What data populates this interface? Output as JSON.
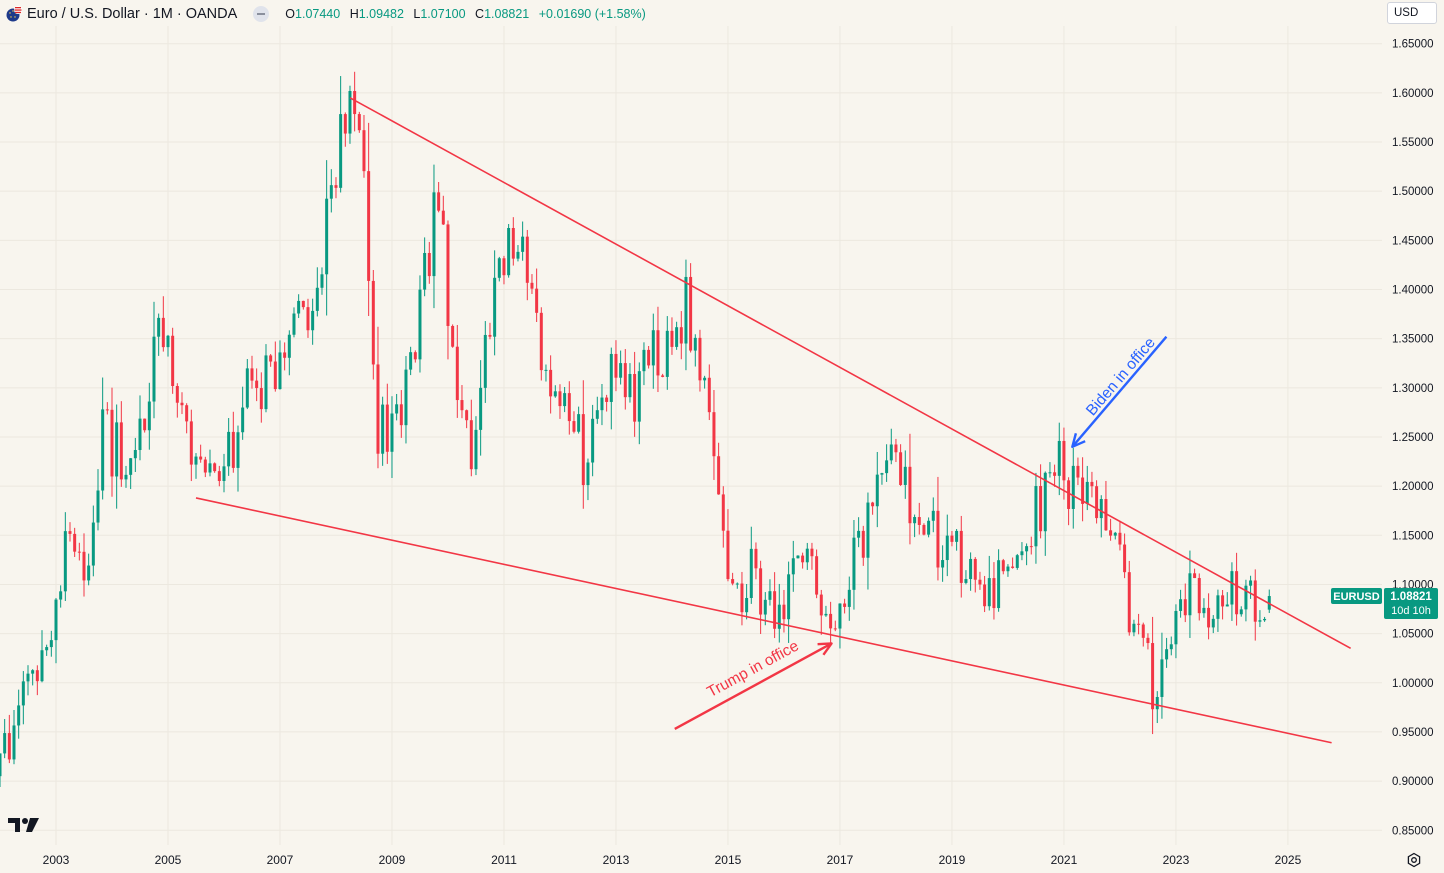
{
  "header": {
    "symbol_title": "Euro / U.S. Dollar · 1M · OANDA",
    "open_label": "O",
    "open": "1.07440",
    "high_label": "H",
    "high": "1.09482",
    "low_label": "L",
    "low": "1.07100",
    "close_label": "C",
    "close": "1.08821",
    "change": "+0.01690 (+1.58%)",
    "flag_icon": "eu-us-flag-icon",
    "menu_icon": "collapse-icon"
  },
  "currency_button": "USD",
  "colors": {
    "background": "#f8f5ee",
    "grid": "#ece8df",
    "up": "#089981",
    "down": "#f23645",
    "trendline": "#f23645",
    "trump_arrow": "#f23645",
    "biden_arrow": "#2962ff",
    "price_badge": "#089981"
  },
  "price_badge": {
    "symbol": "EURUSD",
    "price": "1.08821",
    "countdown": "10d 10h"
  },
  "chart_data": {
    "type": "candlestick",
    "title": "Euro / U.S. Dollar · 1M · OANDA",
    "interval": "1M",
    "x_range": [
      2002.0,
      2026.68
    ],
    "y_range": [
      0.835,
      1.668
    ],
    "x_ticks": [
      "2003",
      "2005",
      "2007",
      "2009",
      "2011",
      "2013",
      "2015",
      "2017",
      "2019",
      "2021",
      "2023",
      "2025"
    ],
    "y_ticks": [
      "1.65000",
      "1.60000",
      "1.55000",
      "1.50000",
      "1.45000",
      "1.40000",
      "1.35000",
      "1.30000",
      "1.25000",
      "1.20000",
      "1.15000",
      "1.10000",
      "1.05000",
      "1.00000",
      "0.95000",
      "0.90000",
      "0.85000"
    ],
    "grid": true,
    "anchors": [
      {
        "t": 2002.0,
        "p": 0.905
      },
      {
        "t": 2002.5,
        "p": 0.99
      },
      {
        "t": 2003.0,
        "p": 1.06
      },
      {
        "t": 2003.4,
        "p": 1.17
      },
      {
        "t": 2003.6,
        "p": 1.1
      },
      {
        "t": 2003.95,
        "p": 1.26
      },
      {
        "t": 2004.4,
        "p": 1.2
      },
      {
        "t": 2004.95,
        "p": 1.35
      },
      {
        "t": 2005.9,
        "p": 1.18
      },
      {
        "t": 2006.4,
        "p": 1.28
      },
      {
        "t": 2006.95,
        "p": 1.32
      },
      {
        "t": 2007.5,
        "p": 1.38
      },
      {
        "t": 2007.95,
        "p": 1.47
      },
      {
        "t": 2008.3,
        "p": 1.58
      },
      {
        "t": 2008.55,
        "p": 1.56
      },
      {
        "t": 2008.85,
        "p": 1.25
      },
      {
        "t": 2009.3,
        "p": 1.3
      },
      {
        "t": 2009.9,
        "p": 1.49
      },
      {
        "t": 2010.45,
        "p": 1.22
      },
      {
        "t": 2010.8,
        "p": 1.36
      },
      {
        "t": 2011.3,
        "p": 1.46
      },
      {
        "t": 2011.75,
        "p": 1.33
      },
      {
        "t": 2012.5,
        "p": 1.23
      },
      {
        "t": 2013.1,
        "p": 1.34
      },
      {
        "t": 2013.3,
        "p": 1.28
      },
      {
        "t": 2014.3,
        "p": 1.38
      },
      {
        "t": 2014.65,
        "p": 1.33
      },
      {
        "t": 2015.1,
        "p": 1.08
      },
      {
        "t": 2015.5,
        "p": 1.11
      },
      {
        "t": 2015.95,
        "p": 1.06
      },
      {
        "t": 2016.4,
        "p": 1.13
      },
      {
        "t": 2016.95,
        "p": 1.04
      },
      {
        "t": 2017.6,
        "p": 1.18
      },
      {
        "t": 2018.1,
        "p": 1.24
      },
      {
        "t": 2018.5,
        "p": 1.16
      },
      {
        "t": 2019.1,
        "p": 1.13
      },
      {
        "t": 2019.7,
        "p": 1.1
      },
      {
        "t": 2020.15,
        "p": 1.09
      },
      {
        "t": 2020.6,
        "p": 1.18
      },
      {
        "t": 2021.0,
        "p": 1.22
      },
      {
        "t": 2021.6,
        "p": 1.18
      },
      {
        "t": 2022.0,
        "p": 1.13
      },
      {
        "t": 2022.75,
        "p": 0.98
      },
      {
        "t": 2023.1,
        "p": 1.07
      },
      {
        "t": 2023.5,
        "p": 1.1
      },
      {
        "t": 2023.8,
        "p": 1.06
      },
      {
        "t": 2024.1,
        "p": 1.1
      },
      {
        "t": 2024.5,
        "p": 1.071
      },
      {
        "t": 2024.66,
        "p": 1.0882
      }
    ],
    "last_bar": {
      "open": 1.0744,
      "high": 1.09482,
      "low": 1.071,
      "close": 1.08821
    },
    "trendlines": [
      {
        "name": "upper-trendline",
        "from": {
          "t": 2008.25,
          "p": 1.595
        },
        "to": {
          "t": 2026.12,
          "p": 1.035
        }
      },
      {
        "name": "lower-trendline",
        "from": {
          "t": 2005.5,
          "p": 1.188
        },
        "to": {
          "t": 2025.78,
          "p": 0.939
        }
      }
    ],
    "annotations": [
      {
        "name": "trump-arrow",
        "text": "Trump in office",
        "from": {
          "t": 2014.05,
          "p": 0.953
        },
        "to": {
          "t": 2016.85,
          "p": 1.04
        }
      },
      {
        "name": "biden-arrow",
        "text": "Biden in office",
        "from": {
          "t": 2022.83,
          "p": 1.352
        },
        "to": {
          "t": 2021.15,
          "p": 1.24
        }
      }
    ]
  }
}
